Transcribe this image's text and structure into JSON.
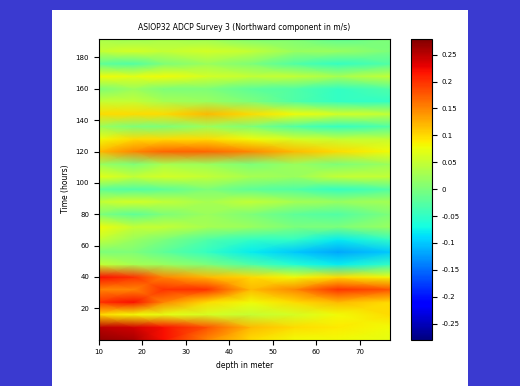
{
  "chart_data": {
    "type": "heatmap",
    "title": "ASIOP32 ADCP Survey 3 (Northward component in m/s)",
    "x_label": "depth in meter",
    "y_label": "Time (hours)",
    "x": [
      10,
      18,
      25,
      35,
      45,
      55,
      65,
      77
    ],
    "y": [
      0,
      8,
      16,
      24,
      32,
      40,
      48,
      56,
      64,
      72,
      80,
      88,
      96,
      104,
      112,
      120,
      128,
      136,
      144,
      152,
      160,
      168,
      176,
      184,
      192
    ],
    "cells": [
      [
        0.27,
        0.26,
        0.22,
        0.15,
        0.1,
        0.08,
        0.08,
        0.07
      ],
      [
        0.25,
        0.24,
        0.22,
        0.18,
        0.12,
        0.1,
        0.09,
        0.08
      ],
      [
        0.1,
        0.08,
        0.07,
        0.06,
        0.05,
        0.06,
        0.08,
        0.1
      ],
      [
        0.2,
        0.22,
        0.15,
        0.1,
        0.08,
        0.1,
        0.12,
        0.1
      ],
      [
        0.15,
        0.15,
        0.2,
        0.2,
        0.12,
        0.15,
        0.2,
        0.18
      ],
      [
        0.22,
        0.2,
        0.15,
        0.12,
        0.1,
        0.08,
        0.1,
        0.08
      ],
      [
        0.05,
        0.03,
        0.02,
        0.0,
        -0.03,
        -0.06,
        -0.08,
        -0.05
      ],
      [
        0.0,
        0.0,
        -0.02,
        -0.05,
        -0.08,
        -0.1,
        -0.12,
        -0.1
      ],
      [
        0.05,
        0.02,
        0.0,
        -0.03,
        -0.05,
        -0.05,
        -0.08,
        -0.05
      ],
      [
        0.08,
        0.05,
        0.05,
        0.03,
        0.02,
        0.0,
        0.0,
        0.02
      ],
      [
        0.0,
        -0.02,
        0.0,
        0.02,
        0.0,
        -0.02,
        -0.03,
        0.0
      ],
      [
        0.05,
        0.06,
        0.05,
        0.03,
        0.05,
        0.03,
        0.02,
        0.03
      ],
      [
        -0.02,
        -0.03,
        -0.02,
        0.0,
        -0.02,
        -0.03,
        -0.05,
        -0.03
      ],
      [
        0.07,
        0.05,
        0.06,
        0.05,
        0.03,
        0.02,
        0.05,
        0.05
      ],
      [
        0.02,
        0.0,
        0.03,
        0.02,
        0.0,
        0.02,
        0.0,
        0.02
      ],
      [
        0.12,
        0.15,
        0.17,
        0.17,
        0.15,
        0.12,
        0.1,
        0.08
      ],
      [
        0.08,
        0.1,
        0.1,
        0.1,
        0.08,
        0.06,
        0.05,
        0.05
      ],
      [
        0.02,
        0.0,
        0.0,
        0.02,
        0.0,
        -0.03,
        -0.05,
        -0.03
      ],
      [
        0.1,
        0.1,
        0.1,
        0.12,
        0.1,
        0.08,
        0.06,
        0.05
      ],
      [
        0.05,
        0.05,
        0.03,
        0.02,
        0.0,
        -0.03,
        -0.05,
        -0.05
      ],
      [
        0.0,
        0.02,
        0.0,
        0.0,
        -0.02,
        -0.03,
        -0.05,
        -0.03
      ],
      [
        0.08,
        0.07,
        0.08,
        0.06,
        0.05,
        0.05,
        0.03,
        0.05
      ],
      [
        -0.02,
        -0.03,
        0.0,
        0.02,
        0.0,
        -0.03,
        -0.05,
        -0.03
      ],
      [
        0.05,
        0.06,
        0.05,
        0.06,
        0.05,
        0.02,
        0.02,
        0.0
      ],
      [
        0.03,
        0.02,
        0.03,
        0.02,
        0.0,
        0.0,
        -0.02,
        0.0
      ]
    ],
    "xlim": [
      10,
      77
    ],
    "ylim": [
      0,
      192
    ],
    "xticks": [
      10,
      20,
      30,
      40,
      50,
      60,
      70
    ],
    "yticks": [
      20,
      40,
      60,
      80,
      100,
      120,
      140,
      160,
      180
    ],
    "colorbar_range": [
      -0.28,
      0.28
    ],
    "colorbar_ticks": [
      -0.25,
      -0.2,
      -0.15,
      -0.1,
      -0.05,
      0,
      0.05,
      0.1,
      0.15,
      0.2,
      0.25
    ]
  }
}
